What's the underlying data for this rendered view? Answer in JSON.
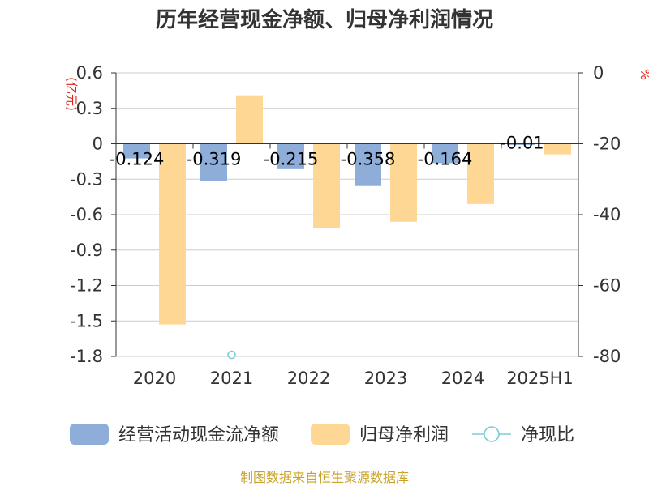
{
  "title": "历年经营现金净额、归母净利润情况",
  "source_note": "制图数据来自恒生聚源数据库",
  "chart_data": {
    "type": "bar",
    "categories": [
      "2020",
      "2021",
      "2022",
      "2023",
      "2024",
      "2025H1"
    ],
    "series": [
      {
        "name": "经营活动现金流净额",
        "axis": "left",
        "color": "#8eadd9",
        "values": [
          -0.124,
          -0.319,
          -0.215,
          -0.358,
          -0.164,
          -0.01
        ],
        "labels": [
          "-0.124",
          "-0.319",
          "-0.215",
          "-0.358",
          "-0.164",
          "-0.01"
        ]
      },
      {
        "name": "归母净利润",
        "axis": "left",
        "color": "#ffd794",
        "values": [
          -1.53,
          0.41,
          -0.71,
          -0.66,
          -0.51,
          -0.09
        ]
      },
      {
        "name": "净现比",
        "axis": "right",
        "type": "line",
        "color": "#7ecbd8",
        "values": [
          null,
          -80,
          null,
          null,
          null,
          null
        ]
      }
    ],
    "y_left": {
      "label": "(亿元)",
      "ylim": [
        -1.8,
        0.6
      ],
      "ticks": [
        "0.6",
        "0.3",
        "0",
        "-0.3",
        "-0.6",
        "-0.9",
        "-1.2",
        "-1.5",
        "-1.8"
      ]
    },
    "y_right": {
      "label": "%",
      "ylim": [
        -80,
        0
      ],
      "ticks": [
        "0",
        "-20",
        "-40",
        "-60",
        "-80"
      ]
    },
    "grid": true,
    "legend_position": "bottom"
  }
}
